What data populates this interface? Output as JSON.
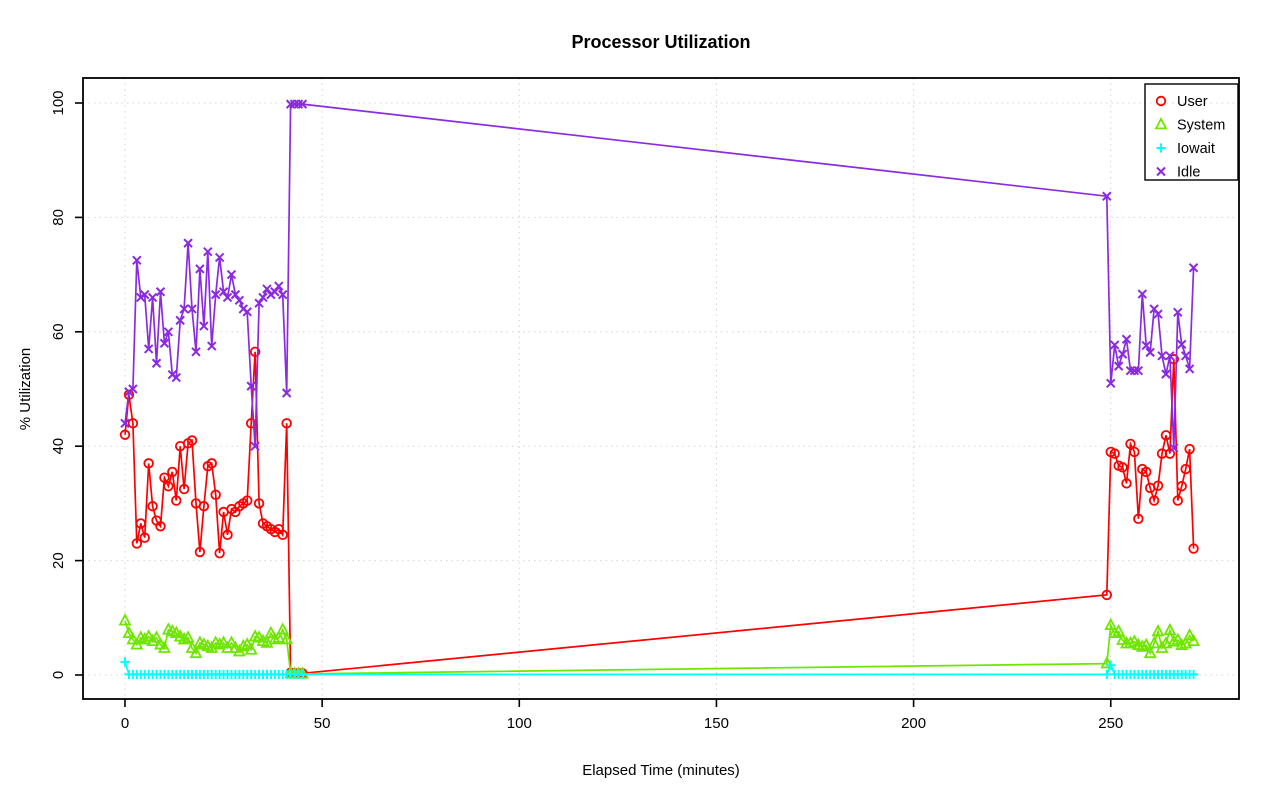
{
  "chart_data": {
    "type": "line",
    "title": "Processor Utilization",
    "xlabel": "Elapsed Time (minutes)",
    "ylabel": "% Utilization",
    "xlim": [
      0,
      271
    ],
    "ylim": [
      0,
      100
    ],
    "xticks": [
      0,
      50,
      100,
      150,
      200,
      250
    ],
    "yticks": [
      0,
      20,
      40,
      60,
      80,
      100
    ],
    "grid": true,
    "grid_style": "dotted-lightgray",
    "legend_position": "top-right",
    "x": [
      0,
      1,
      2,
      3,
      4,
      5,
      6,
      7,
      8,
      9,
      10,
      11,
      12,
      13,
      14,
      15,
      16,
      17,
      18,
      19,
      20,
      21,
      22,
      23,
      24,
      25,
      26,
      27,
      28,
      29,
      30,
      31,
      32,
      33,
      34,
      35,
      36,
      37,
      38,
      39,
      40,
      41,
      42,
      43,
      44,
      45,
      249,
      250,
      251,
      252,
      253,
      254,
      255,
      256,
      257,
      258,
      259,
      260,
      261,
      262,
      263,
      264,
      265,
      266,
      267,
      268,
      269,
      270,
      271
    ],
    "series": [
      {
        "name": "User",
        "color": "#ff0000",
        "marker": "circle",
        "values": [
          42,
          49,
          44,
          23,
          26.5,
          24,
          37,
          29.5,
          27,
          26,
          34.5,
          33,
          35.5,
          30.5,
          40,
          32.5,
          40.5,
          41,
          30,
          21.5,
          29.5,
          36.5,
          37,
          31.5,
          21.3,
          28.5,
          24.5,
          29,
          28.5,
          29.5,
          30,
          30.5,
          44,
          56.5,
          30,
          26.5,
          26,
          25.5,
          25,
          25.5,
          24.5,
          44,
          0.4,
          0.3,
          0.3,
          0.3,
          14,
          39,
          38.7,
          36.6,
          36.3,
          33.5,
          40.4,
          39,
          27.3,
          36,
          35.5,
          32.7,
          30.5,
          33.1,
          38.7,
          41.9,
          38.7,
          55.2,
          30.5,
          33,
          36,
          39.5,
          22.1
        ]
      },
      {
        "name": "System",
        "color": "#6fe600",
        "marker": "triangle",
        "values": [
          9.5,
          7.3,
          6.2,
          5.3,
          6.5,
          6.2,
          6.7,
          5.9,
          6.5,
          5.3,
          4.7,
          7.9,
          7.6,
          7.3,
          6.7,
          6.2,
          6.5,
          4.7,
          3.8,
          5.6,
          5.3,
          5,
          4.7,
          5.6,
          5.3,
          5.6,
          4.7,
          5.6,
          4.7,
          4.1,
          5,
          5.3,
          4.4,
          6.7,
          6.5,
          5.9,
          5.6,
          7.3,
          6.2,
          6.5,
          7.9,
          6.2,
          0.3,
          0.2,
          0.2,
          0.2,
          2,
          8.7,
          7.3,
          7.6,
          6.1,
          5.5,
          5.5,
          5.8,
          5.2,
          4.9,
          5.2,
          3.8,
          5.5,
          7.6,
          4.7,
          5.5,
          7.8,
          5.8,
          6.1,
          5.2,
          5.5,
          6.9,
          5.9
        ]
      },
      {
        "name": "Iowait",
        "color": "#00ffff",
        "marker": "plus",
        "values": [
          2.3,
          0.1,
          0.1,
          0.1,
          0.1,
          0.1,
          0.1,
          0.1,
          0.1,
          0.1,
          0.1,
          0.1,
          0.1,
          0.1,
          0.1,
          0.1,
          0.1,
          0.1,
          0.1,
          0.1,
          0.1,
          0.1,
          0.1,
          0.1,
          0.1,
          0.1,
          0.1,
          0.1,
          0.1,
          0.1,
          0.1,
          0.1,
          0.1,
          0.1,
          0.1,
          0.1,
          0.1,
          0.1,
          0.1,
          0.1,
          0.1,
          0.1,
          0.1,
          0.1,
          0.1,
          0.1,
          0.1,
          1.7,
          0.1,
          0.1,
          0.1,
          0.1,
          0.1,
          0.1,
          0.1,
          0.1,
          0.1,
          0.1,
          0.1,
          0.1,
          0.1,
          0.1,
          0.1,
          0.1,
          0.1,
          0.1,
          0.1,
          0.1,
          0.1
        ]
      },
      {
        "name": "Idle",
        "color": "#8a2be2",
        "marker": "x",
        "values": [
          44,
          49.5,
          50,
          72.5,
          66,
          66.5,
          57,
          66,
          54.5,
          67,
          58,
          60,
          52.5,
          52,
          62,
          64,
          75.5,
          64,
          56.5,
          71,
          61,
          74,
          57.5,
          66.5,
          73,
          67,
          66,
          70,
          66.5,
          65.5,
          64,
          63.5,
          50.5,
          40,
          65,
          66,
          67.5,
          66.5,
          67,
          68,
          66.5,
          49.3,
          99.8,
          99.8,
          99.8,
          99.8,
          83.7,
          51,
          57.7,
          54,
          56.1,
          58.7,
          53.2,
          53.2,
          53.2,
          66.6,
          57.6,
          56.4,
          64,
          63.1,
          55.8,
          52.6,
          55.8,
          39.7,
          63.4,
          57.8,
          55.8,
          53.5,
          71.2
        ]
      }
    ],
    "legend": [
      "User",
      "System",
      "Iowait",
      "Idle"
    ]
  }
}
